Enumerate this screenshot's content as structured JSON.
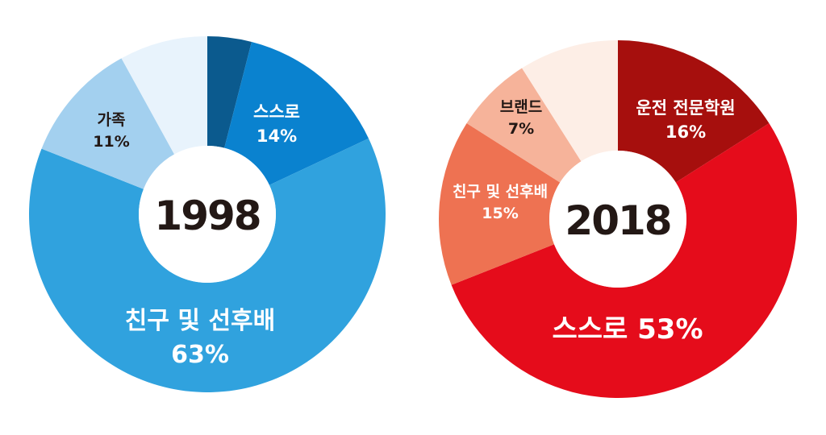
{
  "chart_data": [
    {
      "type": "pie",
      "center_label": "1998",
      "slices": [
        {
          "label": "",
          "value": 4,
          "value_text": "",
          "color": "#0b5a8e"
        },
        {
          "label": "스스로",
          "value": 14,
          "value_text": "14%",
          "color": "#0a82cf"
        },
        {
          "label": "친구 및 선후배",
          "value": 63,
          "value_text": "63%",
          "color": "#30a2de"
        },
        {
          "label": "가족",
          "value": 11,
          "value_text": "11%",
          "color": "#a3d0ef"
        },
        {
          "label": "",
          "value": 8,
          "value_text": "",
          "color": "#e8f3fc"
        }
      ]
    },
    {
      "type": "pie",
      "center_label": "2018",
      "slices": [
        {
          "label": "운전 전문학원",
          "value": 16,
          "value_text": "16%",
          "color": "#a60f0d"
        },
        {
          "label": "스스로",
          "value": 53,
          "value_text": "53%",
          "color": "#e50c1b"
        },
        {
          "label": "친구 및 선후배",
          "value": 15,
          "value_text": "15%",
          "color": "#ee7252"
        },
        {
          "label": "브랜드",
          "value": 7,
          "value_text": "7%",
          "color": "#f6b39a"
        },
        {
          "label": "",
          "value": 9,
          "value_text": "",
          "color": "#fdeee6"
        }
      ]
    }
  ]
}
